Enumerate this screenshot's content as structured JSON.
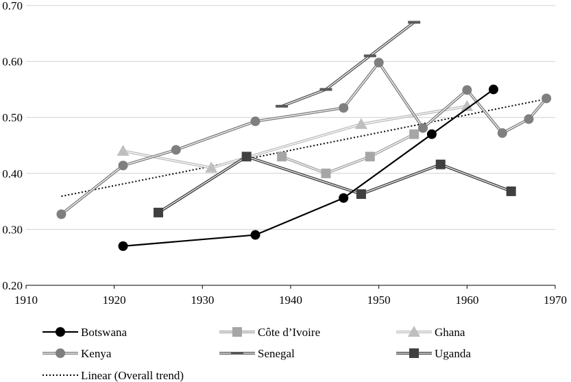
{
  "chart_data": {
    "type": "line",
    "xlim": [
      1910,
      1970
    ],
    "ylim": [
      0.2,
      0.7
    ],
    "x_ticks": [
      "1910",
      "1920",
      "1930",
      "1940",
      "1950",
      "1960",
      "1970"
    ],
    "y_ticks": [
      "0.20",
      "0.30",
      "0.40",
      "0.50",
      "0.60",
      "0.70"
    ],
    "grid": "horizontal",
    "legend_position": "bottom",
    "series": [
      {
        "name": "Botswana",
        "marker": "circle",
        "style": "solid",
        "color": "#000000",
        "points": [
          [
            1921,
            0.27
          ],
          [
            1936,
            0.29
          ],
          [
            1946,
            0.356
          ],
          [
            1956,
            0.47
          ],
          [
            1963,
            0.55
          ]
        ]
      },
      {
        "name": "Côte d’Ivoire",
        "marker": "square",
        "style": "double",
        "color": "#a6a6a6",
        "points": [
          [
            1939,
            0.43
          ],
          [
            1944,
            0.4
          ],
          [
            1949,
            0.43
          ],
          [
            1954,
            0.47
          ]
        ]
      },
      {
        "name": "Ghana",
        "marker": "triangle",
        "style": "double",
        "color": "#bfbfbf",
        "points": [
          [
            1921,
            0.44
          ],
          [
            1931,
            0.41
          ],
          [
            1948,
            0.488
          ],
          [
            1960,
            0.52
          ]
        ]
      },
      {
        "name": "Kenya",
        "marker": "circle",
        "style": "double",
        "color": "#7f7f7f",
        "points": [
          [
            1914,
            0.327
          ],
          [
            1921,
            0.414
          ],
          [
            1927,
            0.442
          ],
          [
            1936,
            0.493
          ],
          [
            1946,
            0.517
          ],
          [
            1950,
            0.598
          ],
          [
            1955,
            0.481
          ],
          [
            1960,
            0.549
          ],
          [
            1964,
            0.472
          ],
          [
            1967,
            0.497
          ],
          [
            1969,
            0.534
          ]
        ]
      },
      {
        "name": "Senegal",
        "marker": "dash",
        "style": "double",
        "color": "#595959",
        "points": [
          [
            1939,
            0.52
          ],
          [
            1944,
            0.55
          ],
          [
            1949,
            0.61
          ],
          [
            1954,
            0.67
          ]
        ]
      },
      {
        "name": "Uganda",
        "marker": "square",
        "style": "double",
        "color": "#404040",
        "points": [
          [
            1925,
            0.33
          ],
          [
            1935,
            0.43
          ],
          [
            1948,
            0.363
          ],
          [
            1957,
            0.416
          ],
          [
            1965,
            0.368
          ]
        ]
      }
    ],
    "trend": {
      "name": "Linear (Overall trend)",
      "style": "dotted",
      "color": "#000000",
      "points": [
        [
          1914,
          0.359
        ],
        [
          1969,
          0.533
        ]
      ]
    }
  }
}
